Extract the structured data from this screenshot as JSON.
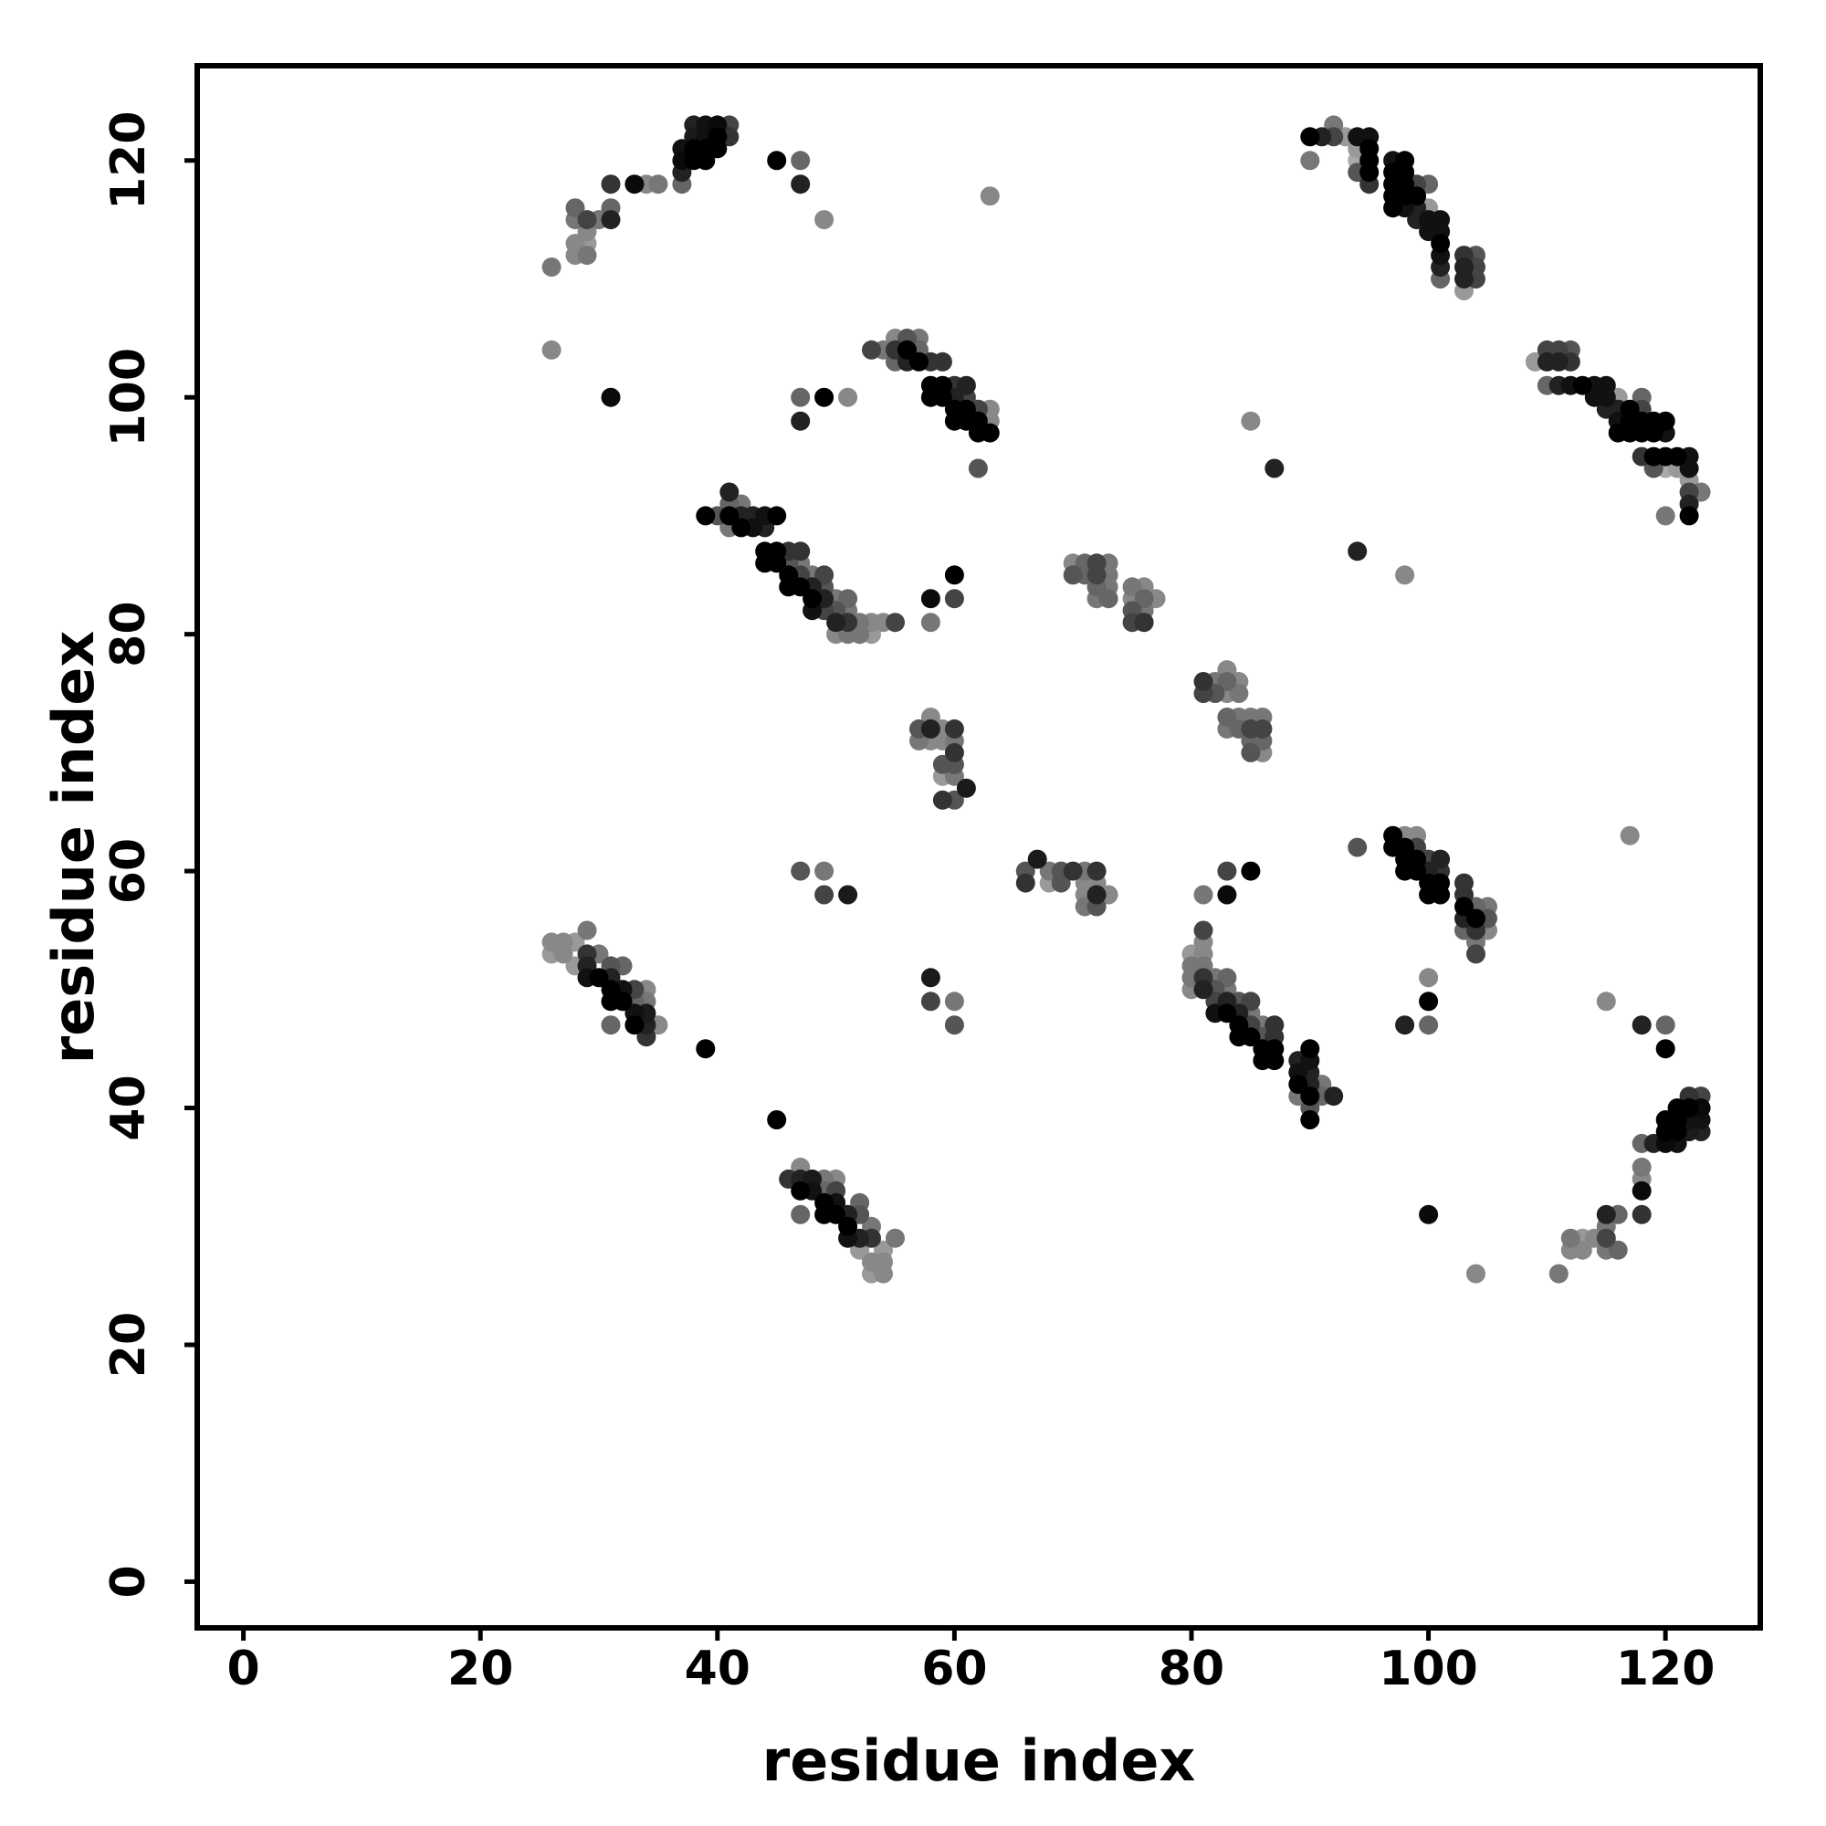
{
  "chart_data": {
    "type": "scatter",
    "title": "",
    "xlabel": "residue index",
    "ylabel": "residue index",
    "xticks": [
      0,
      20,
      40,
      60,
      80,
      100,
      120
    ],
    "yticks": [
      0,
      20,
      40,
      60,
      80,
      100,
      120
    ],
    "xlim": [
      -3.9,
      128.0
    ],
    "ylim": [
      -3.9,
      128.0
    ],
    "grid": false,
    "legend": "none",
    "background_color": "#ffffff",
    "axis_color": "#000000",
    "marker": {
      "shape": "circle",
      "radius_px": 10.5
    },
    "symmetric": true,
    "points_note": "Residue-residue contact map. Points are listed for the upper triangle (x < y) as [residue_i, residue_j, gray_color]; each point is mirrored across the diagonal (j, i) with the same color.",
    "points": [
      [
        26,
        104,
        "#888888"
      ],
      [
        26,
        111,
        "#777777"
      ],
      [
        28,
        112,
        "#888888"
      ],
      [
        29,
        112,
        "#777777"
      ],
      [
        28,
        113,
        "#888888"
      ],
      [
        29,
        113,
        "#999999"
      ],
      [
        29,
        114,
        "#888888"
      ],
      [
        28,
        115,
        "#777777"
      ],
      [
        29,
        115,
        "#444444"
      ],
      [
        30,
        115,
        "#777777"
      ],
      [
        31,
        115,
        "#222222"
      ],
      [
        28,
        116,
        "#666666"
      ],
      [
        31,
        116,
        "#666666"
      ],
      [
        31,
        118,
        "#333333"
      ],
      [
        33,
        118,
        "#0a0a0a"
      ],
      [
        34,
        118,
        "#888888"
      ],
      [
        35,
        118,
        "#777777"
      ],
      [
        37,
        118,
        "#666666"
      ],
      [
        37,
        119,
        "#222222"
      ],
      [
        37,
        120,
        "#0a0a0a"
      ],
      [
        38,
        120,
        "#000000"
      ],
      [
        39,
        120,
        "#000000"
      ],
      [
        37,
        121,
        "#111111"
      ],
      [
        38,
        121,
        "#000000"
      ],
      [
        39,
        121,
        "#000000"
      ],
      [
        40,
        121,
        "#000000"
      ],
      [
        38,
        122,
        "#1a1a1a"
      ],
      [
        39,
        122,
        "#111111"
      ],
      [
        40,
        122,
        "#000000"
      ],
      [
        41,
        122,
        "#333333"
      ],
      [
        38,
        123,
        "#222222"
      ],
      [
        39,
        123,
        "#111111"
      ],
      [
        40,
        123,
        "#0a0a0a"
      ],
      [
        41,
        123,
        "#444444"
      ],
      [
        45,
        120,
        "#000000"
      ],
      [
        47,
        120,
        "#666666"
      ],
      [
        47,
        118,
        "#222222"
      ],
      [
        49,
        115,
        "#888888"
      ],
      [
        31,
        100,
        "#0a0a0a"
      ],
      [
        63,
        117,
        "#888888"
      ],
      [
        47,
        100,
        "#666666"
      ],
      [
        49,
        100,
        "#000000"
      ],
      [
        51,
        100,
        "#888888"
      ],
      [
        47,
        98,
        "#222222"
      ],
      [
        53,
        104,
        "#444444"
      ],
      [
        54,
        104,
        "#777777"
      ],
      [
        55,
        105,
        "#888888"
      ],
      [
        56,
        105,
        "#555555"
      ],
      [
        57,
        105,
        "#777777"
      ],
      [
        55,
        104,
        "#333333"
      ],
      [
        56,
        104,
        "#000000"
      ],
      [
        57,
        104,
        "#666666"
      ],
      [
        55,
        103,
        "#666666"
      ],
      [
        56,
        103,
        "#222222"
      ],
      [
        57,
        103,
        "#000000"
      ],
      [
        58,
        103,
        "#333333"
      ],
      [
        59,
        103,
        "#333333"
      ],
      [
        58,
        101,
        "#000000"
      ],
      [
        59,
        101,
        "#000000"
      ],
      [
        60,
        101,
        "#333333"
      ],
      [
        61,
        101,
        "#222222"
      ],
      [
        58,
        100,
        "#000000"
      ],
      [
        59,
        100,
        "#000000"
      ],
      [
        60,
        100,
        "#222222"
      ],
      [
        61,
        100,
        "#444444"
      ],
      [
        60,
        99,
        "#000000"
      ],
      [
        61,
        99,
        "#000000"
      ],
      [
        62,
        99,
        "#444444"
      ],
      [
        63,
        99,
        "#888888"
      ],
      [
        60,
        98,
        "#000000"
      ],
      [
        61,
        98,
        "#000000"
      ],
      [
        62,
        98,
        "#000000"
      ],
      [
        63,
        98,
        "#888888"
      ],
      [
        62,
        97,
        "#000000"
      ],
      [
        63,
        97,
        "#000000"
      ],
      [
        62,
        94,
        "#555555"
      ],
      [
        39,
        90,
        "#000000"
      ],
      [
        40,
        90,
        "#555555"
      ],
      [
        41,
        90,
        "#000000"
      ],
      [
        42,
        90,
        "#222222"
      ],
      [
        43,
        90,
        "#222222"
      ],
      [
        44,
        90,
        "#111111"
      ],
      [
        45,
        90,
        "#000000"
      ],
      [
        41,
        91,
        "#666666"
      ],
      [
        42,
        91,
        "#777777"
      ],
      [
        41,
        92,
        "#222222"
      ],
      [
        41,
        89,
        "#777777"
      ],
      [
        42,
        89,
        "#000000"
      ],
      [
        43,
        89,
        "#111111"
      ],
      [
        44,
        89,
        "#222222"
      ],
      [
        44,
        87,
        "#000000"
      ],
      [
        45,
        87,
        "#000000"
      ],
      [
        46,
        87,
        "#333333"
      ],
      [
        47,
        87,
        "#333333"
      ],
      [
        44,
        86,
        "#000000"
      ],
      [
        45,
        86,
        "#000000"
      ],
      [
        46,
        86,
        "#555555"
      ],
      [
        47,
        86,
        "#777777"
      ],
      [
        46,
        85,
        "#000000"
      ],
      [
        47,
        85,
        "#444444"
      ],
      [
        48,
        85,
        "#777777"
      ],
      [
        49,
        85,
        "#444444"
      ],
      [
        46,
        84,
        "#000000"
      ],
      [
        47,
        84,
        "#000000"
      ],
      [
        48,
        84,
        "#222222"
      ],
      [
        49,
        84,
        "#555555"
      ],
      [
        48,
        83,
        "#000000"
      ],
      [
        49,
        83,
        "#222222"
      ],
      [
        50,
        83,
        "#777777"
      ],
      [
        51,
        83,
        "#666666"
      ],
      [
        48,
        82,
        "#111111"
      ],
      [
        49,
        82,
        "#444444"
      ],
      [
        50,
        82,
        "#555555"
      ],
      [
        51,
        82,
        "#777777"
      ],
      [
        50,
        81,
        "#222222"
      ],
      [
        51,
        81,
        "#333333"
      ],
      [
        52,
        81,
        "#777777"
      ],
      [
        53,
        81,
        "#888888"
      ],
      [
        54,
        81,
        "#888888"
      ],
      [
        55,
        81,
        "#444444"
      ],
      [
        50,
        80,
        "#888888"
      ],
      [
        51,
        80,
        "#777777"
      ],
      [
        52,
        80,
        "#777777"
      ],
      [
        53,
        80,
        "#999999"
      ],
      [
        58,
        83,
        "#0a0a0a"
      ],
      [
        60,
        85,
        "#000000"
      ],
      [
        60,
        83,
        "#444444"
      ],
      [
        58,
        81,
        "#777777"
      ],
      [
        85,
        98,
        "#888888"
      ],
      [
        87,
        94,
        "#222222"
      ],
      [
        70,
        86,
        "#888888"
      ],
      [
        71,
        86,
        "#666666"
      ],
      [
        72,
        86,
        "#444444"
      ],
      [
        73,
        86,
        "#777777"
      ],
      [
        70,
        85,
        "#555555"
      ],
      [
        71,
        85,
        "#666666"
      ],
      [
        72,
        85,
        "#444444"
      ],
      [
        73,
        85,
        "#777777"
      ],
      [
        72,
        84,
        "#666666"
      ],
      [
        73,
        84,
        "#777777"
      ],
      [
        75,
        84,
        "#777777"
      ],
      [
        76,
        84,
        "#888888"
      ],
      [
        72,
        83,
        "#777777"
      ],
      [
        73,
        83,
        "#666666"
      ],
      [
        75,
        83,
        "#888888"
      ],
      [
        76,
        83,
        "#666666"
      ],
      [
        77,
        83,
        "#888888"
      ],
      [
        75,
        82,
        "#555555"
      ],
      [
        76,
        82,
        "#777777"
      ],
      [
        75,
        81,
        "#444444"
      ],
      [
        76,
        81,
        "#333333"
      ],
      [
        58,
        73,
        "#888888"
      ],
      [
        57,
        72,
        "#555555"
      ],
      [
        58,
        72,
        "#222222"
      ],
      [
        59,
        72,
        "#888888"
      ],
      [
        60,
        72,
        "#333333"
      ],
      [
        57,
        71,
        "#777777"
      ],
      [
        58,
        71,
        "#888888"
      ],
      [
        59,
        71,
        "#888888"
      ],
      [
        60,
        71,
        "#777777"
      ],
      [
        60,
        70,
        "#333333"
      ],
      [
        59,
        69,
        "#555555"
      ],
      [
        60,
        69,
        "#555555"
      ],
      [
        59,
        68,
        "#999999"
      ],
      [
        60,
        68,
        "#777777"
      ],
      [
        61,
        67,
        "#1a1a1a"
      ],
      [
        59,
        66,
        "#333333"
      ],
      [
        60,
        66,
        "#555555"
      ],
      [
        47,
        60,
        "#555555"
      ],
      [
        49,
        60,
        "#777777"
      ],
      [
        49,
        58,
        "#444444"
      ],
      [
        51,
        58,
        "#1a1a1a"
      ],
      [
        39,
        45,
        "#000000"
      ],
      [
        29,
        55,
        "#777777"
      ],
      [
        26,
        54,
        "#888888"
      ],
      [
        27,
        54,
        "#888888"
      ],
      [
        28,
        54,
        "#999999"
      ],
      [
        26,
        53,
        "#999999"
      ],
      [
        27,
        53,
        "#888888"
      ],
      [
        29,
        53,
        "#333333"
      ],
      [
        30,
        53,
        "#777777"
      ],
      [
        28,
        52,
        "#999999"
      ],
      [
        29,
        52,
        "#222222"
      ],
      [
        31,
        52,
        "#555555"
      ],
      [
        32,
        52,
        "#666666"
      ],
      [
        29,
        51,
        "#111111"
      ],
      [
        30,
        51,
        "#000000"
      ],
      [
        31,
        51,
        "#222222"
      ],
      [
        31,
        50,
        "#000000"
      ],
      [
        32,
        50,
        "#111111"
      ],
      [
        33,
        50,
        "#444444"
      ],
      [
        34,
        50,
        "#888888"
      ],
      [
        31,
        49,
        "#000000"
      ],
      [
        32,
        49,
        "#000000"
      ],
      [
        33,
        49,
        "#666666"
      ],
      [
        34,
        49,
        "#777777"
      ],
      [
        33,
        48,
        "#111111"
      ],
      [
        34,
        48,
        "#1a1a1a"
      ],
      [
        31,
        47,
        "#666666"
      ],
      [
        33,
        47,
        "#000000"
      ],
      [
        34,
        47,
        "#222222"
      ],
      [
        35,
        47,
        "#888888"
      ],
      [
        34,
        46,
        "#333333"
      ],
      [
        90,
        122,
        "#000000"
      ],
      [
        91,
        122,
        "#222222"
      ],
      [
        92,
        122,
        "#444444"
      ],
      [
        93,
        122,
        "#999999"
      ],
      [
        94,
        122,
        "#111111"
      ],
      [
        95,
        122,
        "#111111"
      ],
      [
        92,
        123,
        "#777777"
      ],
      [
        90,
        120,
        "#777777"
      ],
      [
        94,
        121,
        "#999999"
      ],
      [
        95,
        121,
        "#000000"
      ],
      [
        94,
        120,
        "#aaaaaa"
      ],
      [
        95,
        120,
        "#000000"
      ],
      [
        94,
        119,
        "#555555"
      ],
      [
        95,
        119,
        "#000000"
      ],
      [
        95,
        118,
        "#333333"
      ],
      [
        97,
        120,
        "#111111"
      ],
      [
        98,
        120,
        "#000000"
      ],
      [
        97,
        119,
        "#000000"
      ],
      [
        98,
        119,
        "#000000"
      ],
      [
        97,
        118,
        "#000000"
      ],
      [
        98,
        118,
        "#000000"
      ],
      [
        97,
        117,
        "#000000"
      ],
      [
        98,
        117,
        "#000000"
      ],
      [
        97,
        116,
        "#000000"
      ],
      [
        98,
        116,
        "#111111"
      ],
      [
        99,
        118,
        "#444444"
      ],
      [
        100,
        118,
        "#666666"
      ],
      [
        99,
        117,
        "#000000"
      ],
      [
        99,
        116,
        "#222222"
      ],
      [
        100,
        116,
        "#999999"
      ],
      [
        99,
        115,
        "#222222"
      ],
      [
        100,
        115,
        "#111111"
      ],
      [
        101,
        115,
        "#111111"
      ],
      [
        100,
        114,
        "#111111"
      ],
      [
        101,
        114,
        "#111111"
      ],
      [
        101,
        113,
        "#000000"
      ],
      [
        101,
        112,
        "#111111"
      ],
      [
        103,
        112,
        "#333333"
      ],
      [
        104,
        112,
        "#555555"
      ],
      [
        101,
        111,
        "#222222"
      ],
      [
        103,
        111,
        "#222222"
      ],
      [
        104,
        111,
        "#444444"
      ],
      [
        101,
        110,
        "#666666"
      ],
      [
        103,
        110,
        "#222222"
      ],
      [
        104,
        110,
        "#444444"
      ],
      [
        103,
        109,
        "#999999"
      ]
    ]
  }
}
